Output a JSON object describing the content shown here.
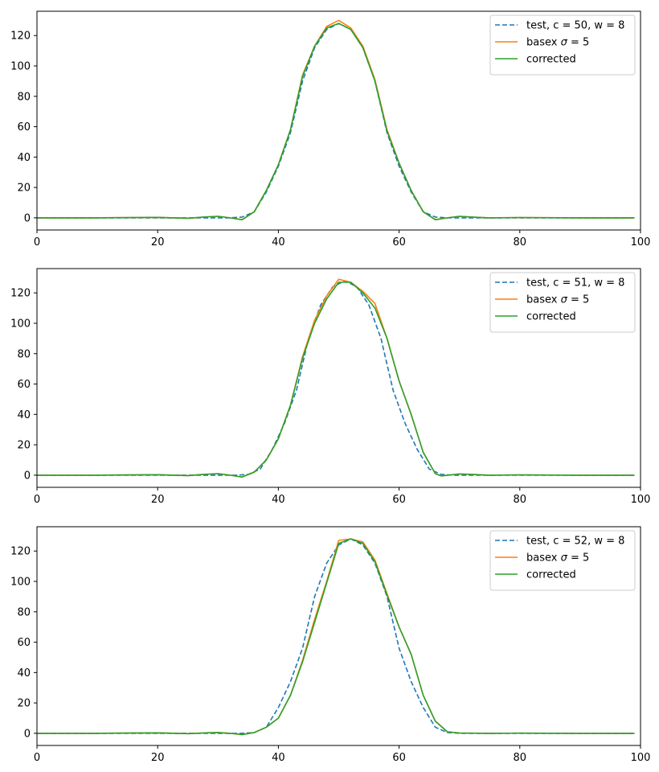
{
  "colors": {
    "test": "#1f77b4",
    "basex": "#ff7f0e",
    "corrected": "#2ca02c",
    "axes": "#000000",
    "legend_border": "#cccccc"
  },
  "chart_data": [
    {
      "type": "line",
      "xlim": [
        0,
        100
      ],
      "ylim": [
        -8,
        136
      ],
      "xticks": [
        "0",
        "20",
        "40",
        "60",
        "80",
        "100"
      ],
      "yticks": [
        "0",
        "20",
        "40",
        "60",
        "80",
        "100",
        "120"
      ],
      "grid": false,
      "legend_position": "top-right",
      "legend": [
        {
          "series": "test",
          "label": "test, c = 50, w = 8"
        },
        {
          "series": "basex",
          "label_prefix": "basex ",
          "label_symbol": "σ",
          "label_suffix": " = 5"
        },
        {
          "series": "corrected",
          "label": "corrected"
        }
      ],
      "series": [
        {
          "name": "test, c = 50, w = 8",
          "style": "dashed",
          "color": "#1f77b4",
          "x": [
            0,
            10,
            20,
            30,
            32,
            34,
            36,
            38,
            40,
            42,
            44,
            46,
            48,
            50,
            52,
            54,
            56,
            58,
            60,
            62,
            64,
            66,
            68,
            70,
            80,
            90,
            99
          ],
          "y": [
            0,
            0,
            0,
            0,
            0,
            0.5,
            4,
            17,
            34,
            56,
            90,
            112,
            124,
            128,
            124,
            112,
            90,
            56,
            34,
            17,
            4,
            0.5,
            0,
            0,
            0,
            0,
            0
          ]
        },
        {
          "name": "basex σ = 5",
          "style": "solid",
          "color": "#ff7f0e",
          "x": [
            0,
            10,
            20,
            25,
            28,
            30,
            32,
            34,
            36,
            38,
            40,
            42,
            44,
            46,
            48,
            50,
            52,
            54,
            56,
            58,
            60,
            62,
            64,
            66,
            68,
            70,
            72,
            75,
            80,
            90,
            99
          ],
          "y": [
            0,
            0,
            0.3,
            -0.3,
            0.6,
            1,
            0,
            -1.2,
            4,
            18,
            35,
            58,
            94,
            113,
            126,
            130,
            125,
            113,
            91,
            58,
            36,
            18,
            4,
            -1.2,
            0,
            1,
            0.5,
            0,
            0.2,
            0,
            0
          ]
        },
        {
          "name": "corrected",
          "style": "solid",
          "color": "#2ca02c",
          "x": [
            0,
            10,
            20,
            25,
            28,
            30,
            32,
            34,
            36,
            38,
            40,
            42,
            44,
            46,
            48,
            50,
            52,
            54,
            56,
            58,
            60,
            62,
            64,
            66,
            68,
            70,
            72,
            75,
            80,
            90,
            99
          ],
          "y": [
            0,
            0,
            0.3,
            -0.3,
            0.6,
            1,
            0,
            -1.2,
            4,
            18,
            35,
            58,
            93,
            113,
            125,
            128,
            124,
            112,
            90,
            57,
            36,
            18,
            4,
            -1.2,
            0,
            1,
            0.5,
            0,
            0.2,
            0,
            0
          ]
        }
      ]
    },
    {
      "type": "line",
      "xlim": [
        0,
        100
      ],
      "ylim": [
        -8,
        136
      ],
      "xticks": [
        "0",
        "20",
        "40",
        "60",
        "80",
        "100"
      ],
      "yticks": [
        "0",
        "20",
        "40",
        "60",
        "80",
        "100",
        "120"
      ],
      "grid": false,
      "legend_position": "top-right",
      "legend": [
        {
          "series": "test",
          "label": "test, c = 51, w = 8"
        },
        {
          "series": "basex",
          "label_prefix": "basex ",
          "label_symbol": "σ",
          "label_suffix": " = 5"
        },
        {
          "series": "corrected",
          "label": "corrected"
        }
      ],
      "series": [
        {
          "name": "test, c = 51, w = 8",
          "style": "dashed",
          "color": "#1f77b4",
          "x": [
            0,
            10,
            20,
            30,
            33,
            35,
            37,
            39,
            41,
            43,
            45,
            47,
            49,
            51,
            53,
            55,
            57,
            59,
            61,
            63,
            65,
            67,
            69,
            71,
            80,
            90,
            99
          ],
          "y": [
            0,
            0,
            0,
            0,
            0,
            0.5,
            4,
            17,
            34,
            56,
            90,
            112,
            124,
            128,
            124,
            112,
            90,
            56,
            34,
            17,
            4,
            0.5,
            0,
            0,
            0,
            0,
            0
          ]
        },
        {
          "name": "basex σ = 5",
          "style": "solid",
          "color": "#ff7f0e",
          "x": [
            0,
            10,
            20,
            25,
            28,
            30,
            32,
            34,
            36,
            38,
            40,
            42,
            44,
            46,
            48,
            50,
            52,
            54,
            56,
            58,
            60,
            62,
            64,
            66,
            67,
            70,
            72,
            75,
            80,
            90,
            99
          ],
          "y": [
            0,
            0,
            0.3,
            -0.3,
            0.6,
            1,
            0,
            -1.2,
            2,
            10,
            24,
            46,
            78,
            102,
            118,
            129,
            127,
            121,
            113,
            90,
            62,
            40,
            15,
            1,
            -0.5,
            0.8,
            0.5,
            0,
            0.2,
            0,
            0
          ]
        },
        {
          "name": "corrected",
          "style": "solid",
          "color": "#2ca02c",
          "x": [
            0,
            10,
            20,
            25,
            28,
            30,
            32,
            34,
            36,
            38,
            40,
            42,
            44,
            46,
            48,
            50,
            52,
            54,
            56,
            58,
            60,
            62,
            64,
            66,
            67,
            70,
            72,
            75,
            80,
            90,
            99
          ],
          "y": [
            0,
            0,
            0.3,
            -0.3,
            0.6,
            1,
            0,
            -1.2,
            2,
            10,
            24,
            46,
            77,
            100,
            116,
            127,
            127,
            120,
            110,
            90,
            62,
            40,
            15,
            1,
            -0.5,
            0.8,
            0.5,
            0,
            0.2,
            0,
            0
          ]
        }
      ]
    },
    {
      "type": "line",
      "xlim": [
        0,
        100
      ],
      "ylim": [
        -8,
        136
      ],
      "xticks": [
        "0",
        "20",
        "40",
        "60",
        "80",
        "100"
      ],
      "yticks": [
        "0",
        "20",
        "40",
        "60",
        "80",
        "100",
        "120"
      ],
      "grid": false,
      "legend_position": "top-right",
      "legend": [
        {
          "series": "test",
          "label": "test, c = 52, w = 8"
        },
        {
          "series": "basex",
          "label_prefix": "basex ",
          "label_symbol": "σ",
          "label_suffix": " = 5"
        },
        {
          "series": "corrected",
          "label": "corrected"
        }
      ],
      "series": [
        {
          "name": "test, c = 52, w = 8",
          "style": "dashed",
          "color": "#1f77b4",
          "x": [
            0,
            10,
            20,
            30,
            34,
            36,
            38,
            40,
            42,
            44,
            46,
            48,
            50,
            52,
            54,
            56,
            58,
            60,
            62,
            64,
            66,
            68,
            70,
            72,
            80,
            90,
            99
          ],
          "y": [
            0,
            0,
            0,
            0,
            0,
            0.5,
            4,
            17,
            34,
            56,
            90,
            112,
            124,
            128,
            124,
            112,
            90,
            56,
            34,
            17,
            4,
            0.5,
            0,
            0,
            0,
            0,
            0
          ]
        },
        {
          "name": "basex σ = 5",
          "style": "solid",
          "color": "#ff7f0e",
          "x": [
            0,
            10,
            20,
            25,
            28,
            30,
            32,
            34,
            36,
            38,
            40,
            42,
            44,
            46,
            48,
            50,
            52,
            54,
            56,
            58,
            60,
            62,
            64,
            66,
            68,
            70,
            75,
            80,
            90,
            99
          ],
          "y": [
            0,
            0,
            0.3,
            -0.2,
            0.3,
            0.5,
            0,
            -0.8,
            0.5,
            4,
            10,
            25,
            48,
            75,
            100,
            127,
            128,
            126,
            114,
            92,
            70,
            52,
            25,
            8,
            1,
            0.2,
            0,
            0.1,
            0,
            0
          ]
        },
        {
          "name": "corrected",
          "style": "solid",
          "color": "#2ca02c",
          "x": [
            0,
            10,
            20,
            25,
            28,
            30,
            32,
            34,
            36,
            38,
            40,
            42,
            44,
            46,
            48,
            50,
            52,
            54,
            56,
            58,
            60,
            62,
            64,
            66,
            68,
            70,
            75,
            80,
            90,
            99
          ],
          "y": [
            0,
            0,
            0.3,
            -0.2,
            0.3,
            0.5,
            0,
            -0.8,
            0.5,
            4,
            10,
            25,
            47,
            73,
            99,
            125,
            128,
            125,
            113,
            91,
            70,
            52,
            25,
            8,
            1,
            0.2,
            0,
            0.1,
            0,
            0
          ]
        }
      ]
    }
  ]
}
